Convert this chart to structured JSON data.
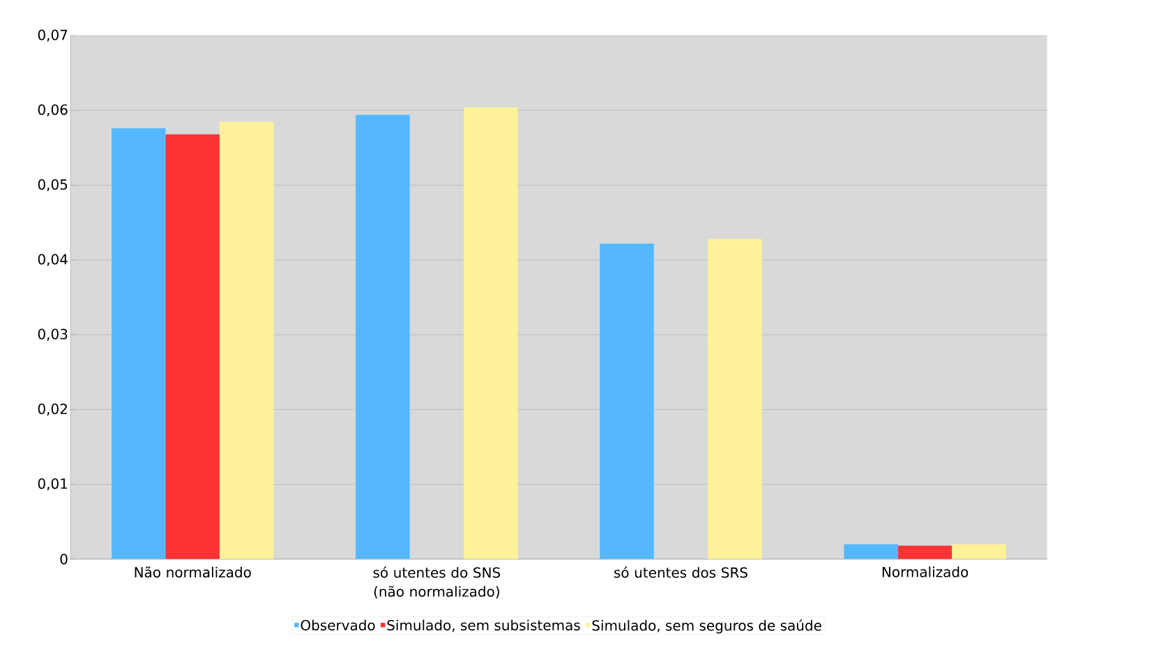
{
  "chart_data": {
    "type": "bar",
    "categories": [
      "Não normalizado",
      "só utentes do SNS (não normalizado)",
      "só utentes dos SRS",
      "Normalizado"
    ],
    "series": [
      {
        "name": "Observado",
        "color": "#55b8ff",
        "values": [
          0.0576,
          0.0594,
          0.0422,
          0.002
        ]
      },
      {
        "name": "Simulado, sem subsistemas",
        "color": "#ff3333",
        "values": [
          0.0568,
          null,
          null,
          0.0018
        ]
      },
      {
        "name": "Simulado, sem seguros de saúde",
        "color": "#fff29a",
        "values": [
          0.0585,
          0.0604,
          0.0428,
          0.002
        ]
      }
    ],
    "ylim": [
      0,
      0.07
    ],
    "yticks": [
      {
        "value": 0,
        "label": "0"
      },
      {
        "value": 0.01,
        "label": "0,01"
      },
      {
        "value": 0.02,
        "label": "0,02"
      },
      {
        "value": 0.03,
        "label": "0,03"
      },
      {
        "value": 0.04,
        "label": "0,04"
      },
      {
        "value": 0.05,
        "label": "0,05"
      },
      {
        "value": 0.06,
        "label": "0,06"
      },
      {
        "value": 0.07,
        "label": "0,07"
      }
    ],
    "grid": "y",
    "legend": "bottom"
  }
}
